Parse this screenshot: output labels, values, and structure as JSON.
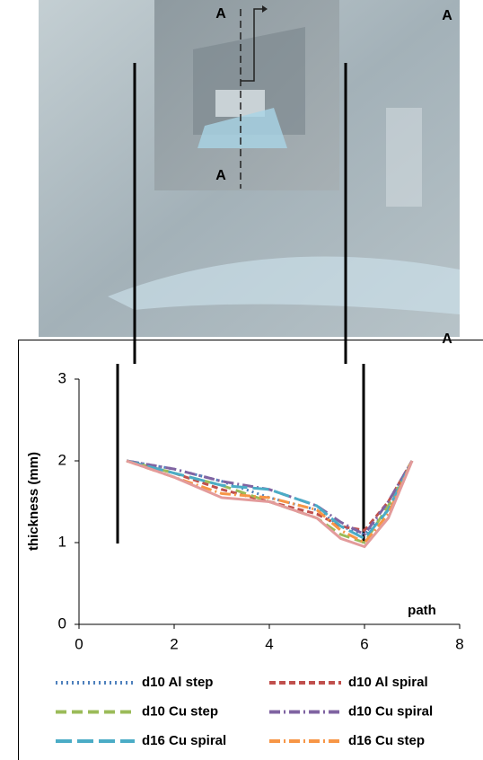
{
  "photo": {
    "labels": [
      "A",
      "A",
      "A",
      "A"
    ]
  },
  "chart_data": {
    "type": "line",
    "x": [
      1,
      2,
      3,
      4,
      5,
      5.5,
      6,
      6.5,
      7
    ],
    "series": [
      {
        "name": "d10 Al step",
        "color": "#4f81bd",
        "dash": "2 4",
        "values": [
          2,
          1.9,
          1.75,
          1.55,
          1.4,
          1.2,
          1.1,
          1.4,
          2
        ]
      },
      {
        "name": "d10 Al spiral",
        "color": "#c0504d",
        "dash": "7 4",
        "values": [
          2,
          1.85,
          1.65,
          1.5,
          1.35,
          1.2,
          1.15,
          1.5,
          2
        ]
      },
      {
        "name": "d10 Cu step",
        "color": "#9bbb59",
        "dash": "12 6",
        "values": [
          2,
          1.85,
          1.7,
          1.5,
          1.3,
          1.1,
          1.0,
          1.45,
          2
        ]
      },
      {
        "name": "d10 Cu spiral",
        "color": "#8064a2",
        "dash": "12 4 2 4",
        "values": [
          2,
          1.9,
          1.75,
          1.65,
          1.45,
          1.25,
          1.1,
          1.5,
          2
        ]
      },
      {
        "name": "d16 Cu spiral",
        "color": "#4bacc6",
        "dash": "18 6",
        "values": [
          2,
          1.85,
          1.7,
          1.65,
          1.45,
          1.2,
          1.05,
          1.4,
          2
        ]
      },
      {
        "name": "d16 Cu step",
        "color": "#f79646",
        "dash": "12 4 2 4",
        "values": [
          2,
          1.8,
          1.6,
          1.55,
          1.4,
          1.15,
          1.0,
          1.35,
          2
        ]
      },
      {
        "color": "#e39b9b",
        "values": [
          2,
          1.8,
          1.55,
          1.5,
          1.3,
          1.05,
          0.95,
          1.3,
          2
        ]
      }
    ],
    "y_label": "thickness (mm)",
    "x_label": "path",
    "xlim": [
      0,
      8
    ],
    "xticks": [
      0,
      2,
      4,
      6,
      8
    ],
    "ylim": [
      0,
      3
    ],
    "yticks": [
      0,
      1,
      2,
      3
    ]
  }
}
